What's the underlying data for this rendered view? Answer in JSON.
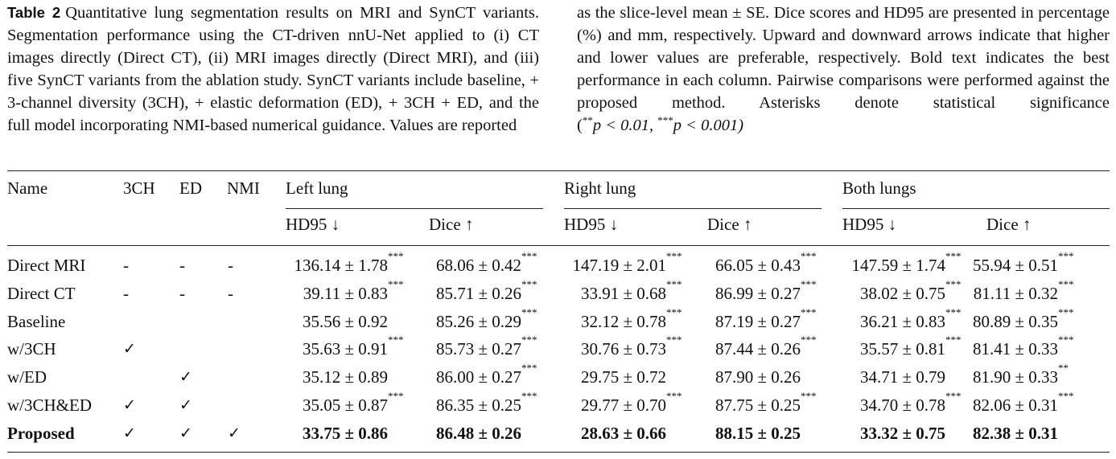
{
  "caption": {
    "label": "Table 2",
    "left_text": "Quantitative lung segmentation results on MRI and SynCT variants. Segmentation performance using the CT-driven nnU-Net applied to (i) CT images directly (Direct CT), (ii) MRI images directly (Direct MRI), and (iii) five SynCT variants from the ablation study. SynCT variants include baseline, + 3-channel diversity (3CH), + elastic deformation (ED), + 3CH + ED, and the full model incorporating NMI-based numerical guidance. Values are reported",
    "right_text": "as the slice-level mean ± SE. Dice scores and HD95 are presented in percentage (%) and mm, respectively. Upward and downward arrows indicate that higher and lower values are preferable, respectively. Bold text indicates the best performance in each column. Pairwise comparisons were performed against the proposed method. Asterisks denote statistical significance (",
    "sig1_stars": "**",
    "sig1_text": "p < 0.01, ",
    "sig2_stars": "***",
    "sig2_text": "p < 0.001)"
  },
  "table": {
    "headers": {
      "name": "Name",
      "c3ch": "3CH",
      "ed": "ED",
      "nmi": "NMI",
      "left": "Left lung",
      "right": "Right lung",
      "both": "Both lungs",
      "hd95": "HD95 ↓",
      "dice": "Dice ↑"
    },
    "check": "✓",
    "rows": [
      {
        "name": "Direct MRI",
        "c3ch": "-",
        "ed": "-",
        "nmi": "-",
        "l_hd": "136.14 ± 1.78",
        "l_hd_sig": "***",
        "l_dice": "68.06 ± 0.42",
        "l_dice_sig": "***",
        "r_hd": "147.19 ± 2.01",
        "r_hd_sig": "***",
        "r_dice": "66.05 ± 0.43",
        "r_dice_sig": "***",
        "b_hd": "147.59 ± 1.74",
        "b_hd_sig": "***",
        "b_dice": "55.94 ± 0.51",
        "b_dice_sig": "***"
      },
      {
        "name": "Direct CT",
        "c3ch": "-",
        "ed": "-",
        "nmi": "-",
        "l_hd": "39.11 ± 0.83",
        "l_hd_sig": "***",
        "l_dice": "85.71 ± 0.26",
        "l_dice_sig": "***",
        "r_hd": "33.91 ± 0.68",
        "r_hd_sig": "***",
        "r_dice": "86.99 ± 0.27",
        "r_dice_sig": "***",
        "b_hd": "38.02 ± 0.75",
        "b_hd_sig": "***",
        "b_dice": "81.11 ± 0.32",
        "b_dice_sig": "***"
      },
      {
        "name": "Baseline",
        "c3ch": "",
        "ed": "",
        "nmi": "",
        "l_hd": "35.56 ± 0.92",
        "l_hd_sig": "",
        "l_dice": "85.26 ± 0.29",
        "l_dice_sig": "***",
        "r_hd": "32.12 ± 0.78",
        "r_hd_sig": "***",
        "r_dice": "87.19 ± 0.27",
        "r_dice_sig": "***",
        "b_hd": "36.21 ± 0.83",
        "b_hd_sig": "***",
        "b_dice": "80.89 ± 0.35",
        "b_dice_sig": "***"
      },
      {
        "name": "w/3CH",
        "c3ch": "✓",
        "ed": "",
        "nmi": "",
        "l_hd": "35.63 ± 0.91",
        "l_hd_sig": "***",
        "l_dice": "85.73 ± 0.27",
        "l_dice_sig": "***",
        "r_hd": "30.76 ± 0.73",
        "r_hd_sig": "***",
        "r_dice": "87.44 ± 0.26",
        "r_dice_sig": "***",
        "b_hd": "35.57 ± 0.81",
        "b_hd_sig": "***",
        "b_dice": "81.41 ± 0.33",
        "b_dice_sig": "***"
      },
      {
        "name": "w/ED",
        "c3ch": "",
        "ed": "✓",
        "nmi": "",
        "l_hd": "35.12 ± 0.89",
        "l_hd_sig": "",
        "l_dice": "86.00 ± 0.27",
        "l_dice_sig": "***",
        "r_hd": "29.75 ± 0.72",
        "r_hd_sig": "",
        "r_dice": "87.90 ± 0.26",
        "r_dice_sig": "",
        "b_hd": "34.71 ± 0.79",
        "b_hd_sig": "",
        "b_dice": "81.90 ± 0.33",
        "b_dice_sig": "**"
      },
      {
        "name": "w/3CH&ED",
        "c3ch": "✓",
        "ed": "✓",
        "nmi": "",
        "l_hd": "35.05 ± 0.87",
        "l_hd_sig": "***",
        "l_dice": "86.35 ± 0.25",
        "l_dice_sig": "***",
        "r_hd": "29.77 ± 0.70",
        "r_hd_sig": "***",
        "r_dice": "87.75 ± 0.25",
        "r_dice_sig": "***",
        "b_hd": "34.70 ± 0.78",
        "b_hd_sig": "***",
        "b_dice": "82.06 ± 0.31",
        "b_dice_sig": "***"
      },
      {
        "name": "Proposed",
        "c3ch": "✓",
        "ed": "✓",
        "nmi": "✓",
        "bold": true,
        "l_hd": "33.75 ± 0.86",
        "l_hd_sig": "",
        "l_dice": "86.48 ± 0.26",
        "l_dice_sig": "",
        "r_hd": "28.63 ± 0.66",
        "r_hd_sig": "",
        "r_dice": "88.15 ± 0.25",
        "r_dice_sig": "",
        "b_hd": "33.32 ± 0.75",
        "b_hd_sig": "",
        "b_dice": "82.38 ± 0.31",
        "b_dice_sig": ""
      }
    ]
  }
}
